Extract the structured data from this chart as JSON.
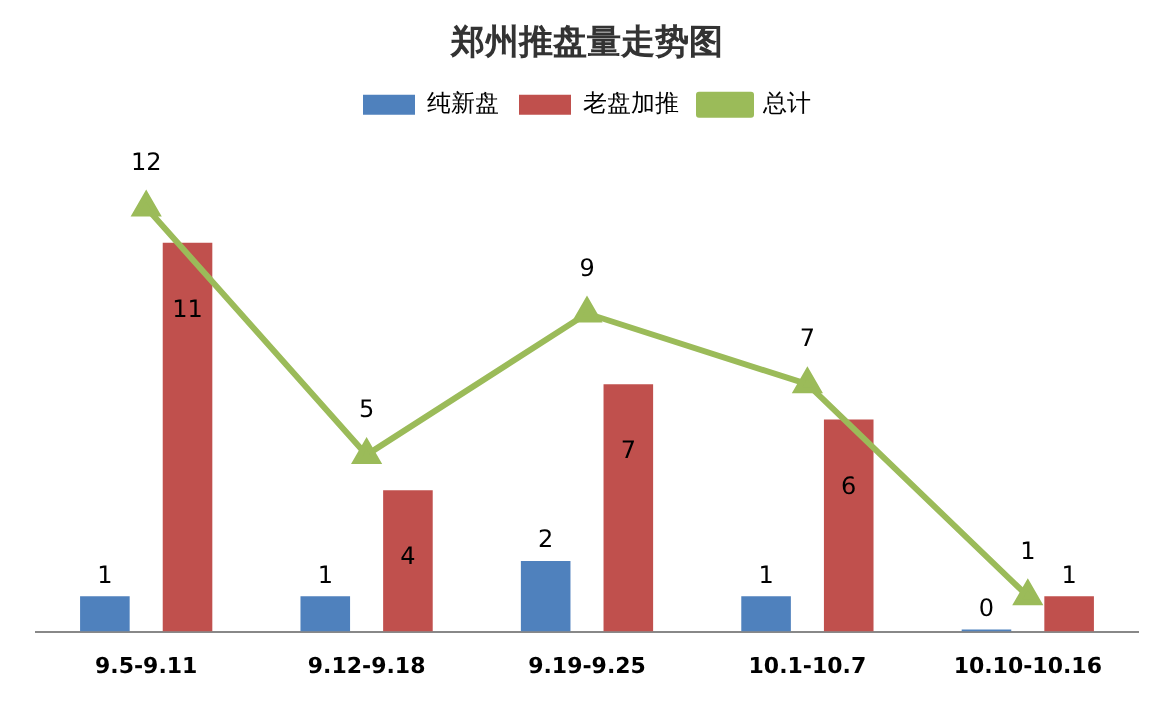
{
  "chart_data": {
    "type": "bar",
    "title": "郑州推盘量走势图",
    "categories": [
      "9.5-9.11",
      "9.12-9.18",
      "9.19-9.25",
      "10.1-10.7",
      "10.10-10.16"
    ],
    "series": [
      {
        "name": "纯新盘",
        "color": "#4f81bd",
        "values": [
          1,
          1,
          2,
          1,
          0
        ]
      },
      {
        "name": "老盘加推",
        "color": "#c0504d",
        "values": [
          11,
          4,
          7,
          6,
          1
        ]
      },
      {
        "name": "总计",
        "color": "#9bbb59",
        "type": "line",
        "marker": "triangle",
        "values": [
          12,
          5,
          9,
          7,
          1
        ]
      }
    ],
    "data_labels": true,
    "grid": false,
    "legend": "top"
  }
}
